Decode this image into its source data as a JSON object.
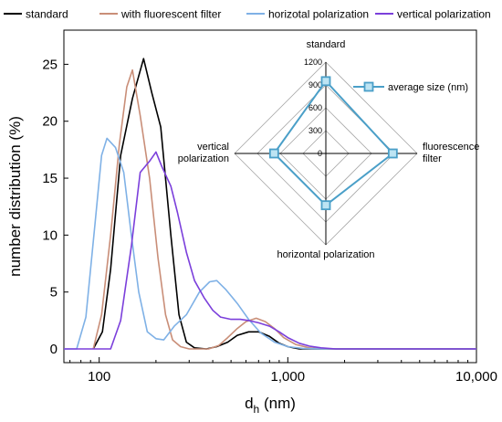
{
  "chart_data": [
    {
      "type": "line",
      "xlabel_main": "d",
      "xlabel_sub": "h",
      "xlabel_unit": " (nm)",
      "ylabel": "number distribution (%)",
      "x_scale": "log",
      "xlim": [
        65,
        10000
      ],
      "ylim": [
        -1.2,
        28
      ],
      "x_ticks": [
        {
          "value": 100,
          "label": "100"
        },
        {
          "value": 1000,
          "label": "1,000"
        },
        {
          "value": 10000,
          "label": "10,000"
        }
      ],
      "y_ticks": [
        0,
        5,
        10,
        15,
        20,
        25
      ],
      "legend_position": "top",
      "grid": false,
      "series": [
        {
          "name": "standard",
          "color": "#000000",
          "points": [
            [
              93,
              0
            ],
            [
              104,
              1.5
            ],
            [
              115,
              7
            ],
            [
              130,
              17
            ],
            [
              150,
              22
            ],
            [
              172,
              25.5
            ],
            [
              190,
              22.5
            ],
            [
              212,
              19.5
            ],
            [
              240,
              10
            ],
            [
              265,
              3
            ],
            [
              290,
              0.6
            ],
            [
              320,
              0.1
            ],
            [
              370,
              0
            ],
            [
              420,
              0.2
            ],
            [
              480,
              0.6
            ],
            [
              540,
              1.2
            ],
            [
              620,
              1.5
            ],
            [
              700,
              1.5
            ],
            [
              800,
              1.1
            ],
            [
              900,
              0.5
            ],
            [
              1000,
              0.2
            ],
            [
              1150,
              0
            ],
            [
              2000,
              0
            ],
            [
              10000,
              0
            ]
          ]
        },
        {
          "name": "with fluorescent filter",
          "color": "#c98e78",
          "points": [
            [
              93,
              0
            ],
            [
              103,
              3
            ],
            [
              115,
              10
            ],
            [
              128,
              18
            ],
            [
              140,
              23
            ],
            [
              150,
              24.5
            ],
            [
              165,
              20.5
            ],
            [
              185,
              15
            ],
            [
              205,
              8
            ],
            [
              225,
              3
            ],
            [
              245,
              0.8
            ],
            [
              270,
              0.2
            ],
            [
              300,
              0
            ],
            [
              380,
              0
            ],
            [
              430,
              0.3
            ],
            [
              480,
              1.0
            ],
            [
              540,
              1.8
            ],
            [
              600,
              2.4
            ],
            [
              680,
              2.7
            ],
            [
              760,
              2.4
            ],
            [
              850,
              1.8
            ],
            [
              950,
              1.0
            ],
            [
              1100,
              0.4
            ],
            [
              1300,
              0.1
            ],
            [
              1500,
              0
            ],
            [
              10000,
              0
            ]
          ]
        },
        {
          "name": "horizotal polarization",
          "color": "#7fb1e6",
          "points": [
            [
              65,
              0
            ],
            [
              76,
              0
            ],
            [
              85,
              2.8
            ],
            [
              95,
              11
            ],
            [
              103,
              17
            ],
            [
              110,
              18.5
            ],
            [
              122,
              17.7
            ],
            [
              135,
              15.5
            ],
            [
              148,
              10
            ],
            [
              162,
              5
            ],
            [
              180,
              1.5
            ],
            [
              200,
              0.9
            ],
            [
              220,
              0.8
            ],
            [
              250,
              2
            ],
            [
              290,
              3
            ],
            [
              340,
              5
            ],
            [
              385,
              5.9
            ],
            [
              420,
              6
            ],
            [
              470,
              5.2
            ],
            [
              540,
              4
            ],
            [
              620,
              2.6
            ],
            [
              720,
              1.4
            ],
            [
              850,
              0.6
            ],
            [
              1000,
              0.2
            ],
            [
              1200,
              0.05
            ],
            [
              1500,
              0
            ],
            [
              10000,
              0
            ]
          ]
        },
        {
          "name": "vertical polarization",
          "color": "#7b3fdb",
          "points": [
            [
              65,
              0
            ],
            [
              115,
              0
            ],
            [
              130,
              2.5
            ],
            [
              148,
              9
            ],
            [
              165,
              15.5
            ],
            [
              185,
              16.5
            ],
            [
              200,
              17.3
            ],
            [
              215,
              16
            ],
            [
              240,
              14.3
            ],
            [
              260,
              12
            ],
            [
              290,
              8.5
            ],
            [
              320,
              6
            ],
            [
              360,
              4.5
            ],
            [
              400,
              3.4
            ],
            [
              440,
              2.8
            ],
            [
              500,
              2.6
            ],
            [
              560,
              2.6
            ],
            [
              620,
              2.5
            ],
            [
              700,
              2.3
            ],
            [
              800,
              2
            ],
            [
              900,
              1.5
            ],
            [
              1000,
              1
            ],
            [
              1150,
              0.5
            ],
            [
              1300,
              0.25
            ],
            [
              1500,
              0.1
            ],
            [
              1800,
              0
            ],
            [
              10000,
              0
            ]
          ]
        }
      ]
    },
    {
      "type": "radar",
      "title": "standard",
      "axes": [
        "standard",
        "fluorescence filter",
        "horizontal polarization",
        "vertical polarization"
      ],
      "axis_label_lines": [
        [
          "standard"
        ],
        [
          "fluorescence",
          "filter"
        ],
        [
          "horizontal polarization"
        ],
        [
          "vertical",
          "polarization"
        ]
      ],
      "r_ticks": [
        0,
        300,
        600,
        900,
        1200
      ],
      "r_max": 1200,
      "series": [
        {
          "name": "average size (nm)",
          "color": "#4a9fc8",
          "values": [
            950,
            880,
            680,
            680
          ]
        }
      ]
    }
  ]
}
